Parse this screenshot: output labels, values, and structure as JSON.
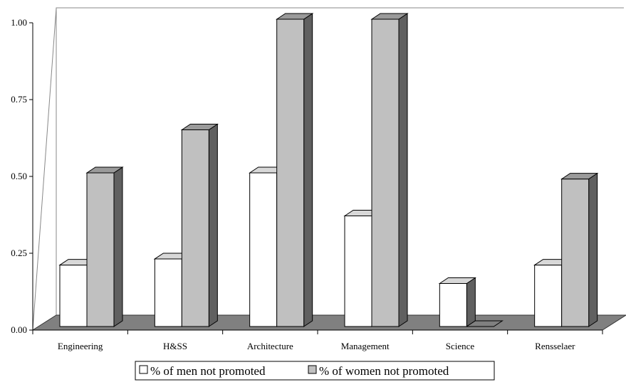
{
  "chart_data": {
    "type": "bar",
    "categories": [
      "Engineering",
      "H&SS",
      "Architecture",
      "Management",
      "Science",
      "Rensselaer"
    ],
    "series": [
      {
        "name": "% of men not promoted",
        "values": [
          0.2,
          0.22,
          0.5,
          0.36,
          0.14,
          0.2
        ],
        "color": "#ffffff"
      },
      {
        "name": "% of women not promoted",
        "values": [
          0.5,
          0.64,
          1.0,
          1.0,
          0.0,
          0.48
        ],
        "color": "#c0c0c0"
      }
    ],
    "title": "",
    "xlabel": "",
    "ylabel": "",
    "ylim": [
      0,
      1
    ],
    "yticks": [
      "0.00",
      "0.25",
      "0.50",
      "0.75",
      "1.00"
    ],
    "grid": false,
    "legend_position": "bottom",
    "style": "3d",
    "colors": {
      "floor": "#808080",
      "bar_side": "#606060",
      "bar_top_light": "#d8d8d8",
      "bar_top_dark": "#9a9a9a"
    }
  }
}
